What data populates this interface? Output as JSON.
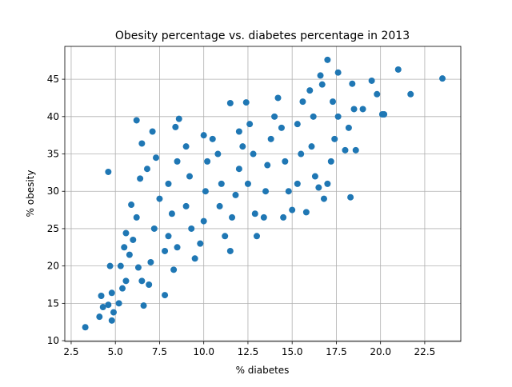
{
  "chart_data": {
    "type": "scatter",
    "title": "Obesity percentage vs. diabetes percentage in 2013",
    "x_label": "% diabetes",
    "y_label": "% obesity",
    "color": "#1f77b4",
    "grid": true,
    "xlim": [
      2.14,
      24.54
    ],
    "ylim": [
      9.9,
      49.4
    ],
    "xticks": [
      2.5,
      {
        "value": 5,
        "label": "5.0"
      },
      7.5,
      {
        "value": 10,
        "label": "10.0"
      },
      12.5,
      {
        "value": 15,
        "label": "15.0"
      },
      17.5,
      {
        "value": 20,
        "label": "20.0"
      },
      22.5
    ],
    "yticks": [
      10,
      15,
      20,
      25,
      30,
      35,
      40,
      45
    ],
    "x": [
      4.1,
      4.3,
      4.2,
      4.8,
      4.9,
      4.6,
      5.2,
      4.8,
      5.4,
      5.6,
      5.3,
      4.7,
      5.8,
      5.5,
      5.6,
      6,
      6.3,
      6.5,
      6.9,
      7,
      6.2,
      5.9,
      6.4,
      6.5,
      7.1,
      7.3,
      6.8,
      7.5,
      7.2,
      7.8,
      8,
      8.3,
      8.5,
      8.2,
      8,
      8.5,
      8.4,
      8.6,
      9,
      9.2,
      9,
      9.3,
      9.5,
      9.8,
      10,
      10.1,
      10.2,
      10,
      10.5,
      10.8,
      11,
      10.9,
      11.2,
      11.5,
      11.6,
      11.8,
      12,
      12.2,
      12,
      11.5,
      12.4,
      12.6,
      12.8,
      12.5,
      12.9,
      13,
      13.4,
      13.5,
      13.6,
      13.8,
      14,
      14.2,
      14.4,
      14.6,
      14.8,
      14.5,
      15,
      15.3,
      15.5,
      15.3,
      15.6,
      16,
      16.2,
      16.1,
      16.3,
      16.5,
      15.8,
      16.8,
      17,
      17.2,
      17.4,
      17.6,
      17.3,
      16.6,
      16.7,
      17.6,
      18.2,
      18,
      18.6,
      18.5,
      18.4,
      19,
      19.5,
      19.8,
      20.1,
      20.2,
      21,
      21.7,
      23.5,
      17,
      18.3,
      3.3,
      4.6,
      6.2,
      6.6,
      7.8
    ],
    "y": [
      13.2,
      14.5,
      16,
      12.7,
      13.8,
      14.8,
      15,
      16.4,
      17,
      18,
      20,
      20,
      21.5,
      22.5,
      24.4,
      23.5,
      19.8,
      18,
      17.5,
      20.5,
      26.5,
      28.2,
      31.7,
      36.4,
      38,
      34.5,
      33,
      29,
      25,
      22,
      24,
      19.5,
      22.5,
      27,
      31,
      34,
      38.6,
      39.7,
      36,
      32,
      28,
      25,
      21,
      23,
      26,
      30,
      34,
      37.5,
      37,
      35,
      31,
      28,
      24,
      22,
      26.5,
      29.5,
      33,
      36,
      38,
      41.8,
      41.9,
      39,
      35,
      31,
      27,
      24,
      26.5,
      30,
      33.5,
      37,
      40,
      42.5,
      38.5,
      34,
      30,
      26.5,
      27.5,
      31,
      35,
      39,
      42,
      43.5,
      40,
      36,
      32,
      30.5,
      27.2,
      29,
      31,
      34,
      37,
      40,
      42,
      45.5,
      44.3,
      45.9,
      38.5,
      35.5,
      35.5,
      41,
      44.4,
      41,
      44.8,
      43,
      40.3,
      40.3,
      46.3,
      43,
      45.1,
      47.6,
      29.2,
      11.8,
      32.6,
      39.5,
      14.7,
      16.1
    ]
  }
}
